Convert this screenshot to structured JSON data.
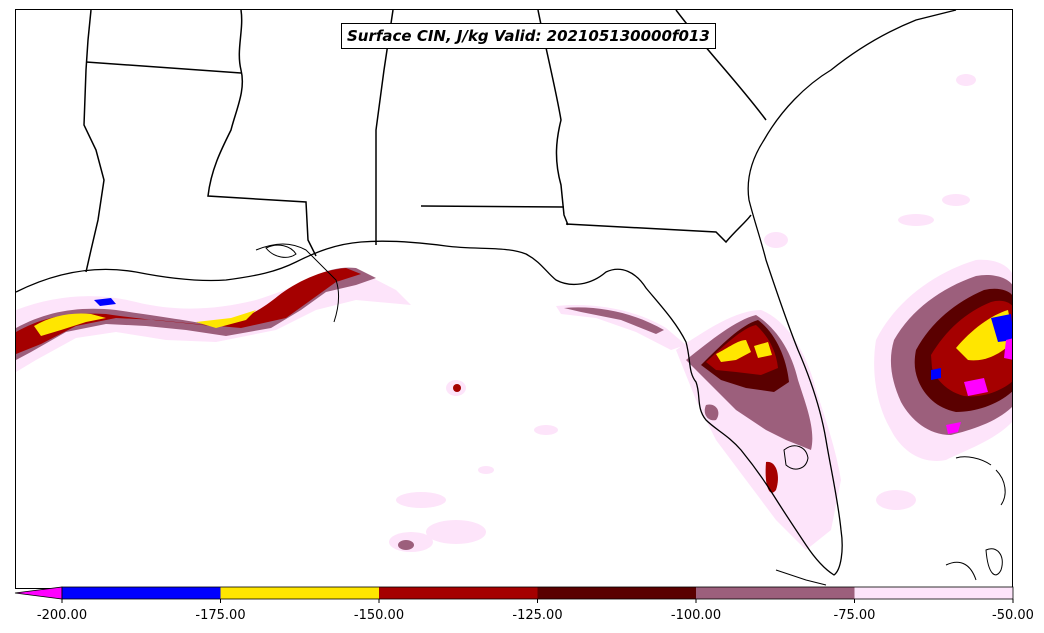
{
  "title": "Surface CIN, J/kg Valid: 202105130000f013",
  "colorbar": {
    "ticks": [
      "-200.00",
      "-175.00",
      "-150.00",
      "-125.00",
      "-100.00",
      "-75.00",
      "-50.00"
    ],
    "bins": [
      {
        "from": -200,
        "to": -175,
        "color": "#0000ff"
      },
      {
        "from": -175,
        "to": -150,
        "color": "#ffe600"
      },
      {
        "from": -150,
        "to": -125,
        "color": "#a50000"
      },
      {
        "from": -125,
        "to": -100,
        "color": "#5a0000"
      },
      {
        "from": -100,
        "to": -75,
        "color": "#9c5f7c"
      },
      {
        "from": -75,
        "to": -50,
        "color": "#fde4fa"
      }
    ],
    "extend_min_color": "#ff00ff"
  }
}
